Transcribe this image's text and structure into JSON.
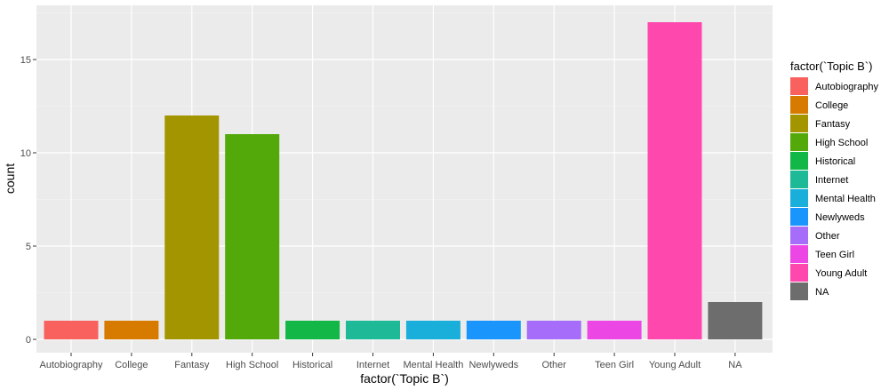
{
  "chart_data": {
    "type": "bar",
    "categories": [
      "Autobiography",
      "College",
      "Fantasy",
      "High School",
      "Historical",
      "Internet",
      "Mental Health",
      "Newlyweds",
      "Other",
      "Teen Girl",
      "Young Adult",
      "NA"
    ],
    "values": [
      1,
      1,
      12,
      11,
      1,
      1,
      1,
      1,
      1,
      1,
      17,
      2
    ],
    "colors": [
      "#F8766D",
      "#DE8C00",
      "#B79F00",
      "#7CAE00",
      "#00BA38",
      "#00C08B",
      "#00B4F0",
      "#619CFF",
      "#C77CFF",
      "#F564E3",
      "#FF64B0",
      "#7F7F7F"
    ],
    "display_colors": [
      "#F8615E",
      "#D67A00",
      "#A39500",
      "#53A80A",
      "#13B748",
      "#1EBA98",
      "#1AAFDB",
      "#1995FC",
      "#A56DF9",
      "#EC47E4",
      "#FF48AE",
      "#6D6D6D"
    ],
    "xlabel": "factor(`Topic B`)",
    "ylabel": "count",
    "ylim": [
      0,
      17.85
    ],
    "yticks": [
      0,
      5,
      10,
      15
    ],
    "grid": true,
    "panel_background": "#EBEBEB",
    "legend": {
      "title": "factor(`Topic B`)",
      "placement": "right",
      "entries": [
        "Autobiography",
        "College",
        "Fantasy",
        "High School",
        "Historical",
        "Internet",
        "Mental Health",
        "Newlyweds",
        "Other",
        "Teen Girl",
        "Young Adult",
        "NA"
      ]
    }
  }
}
